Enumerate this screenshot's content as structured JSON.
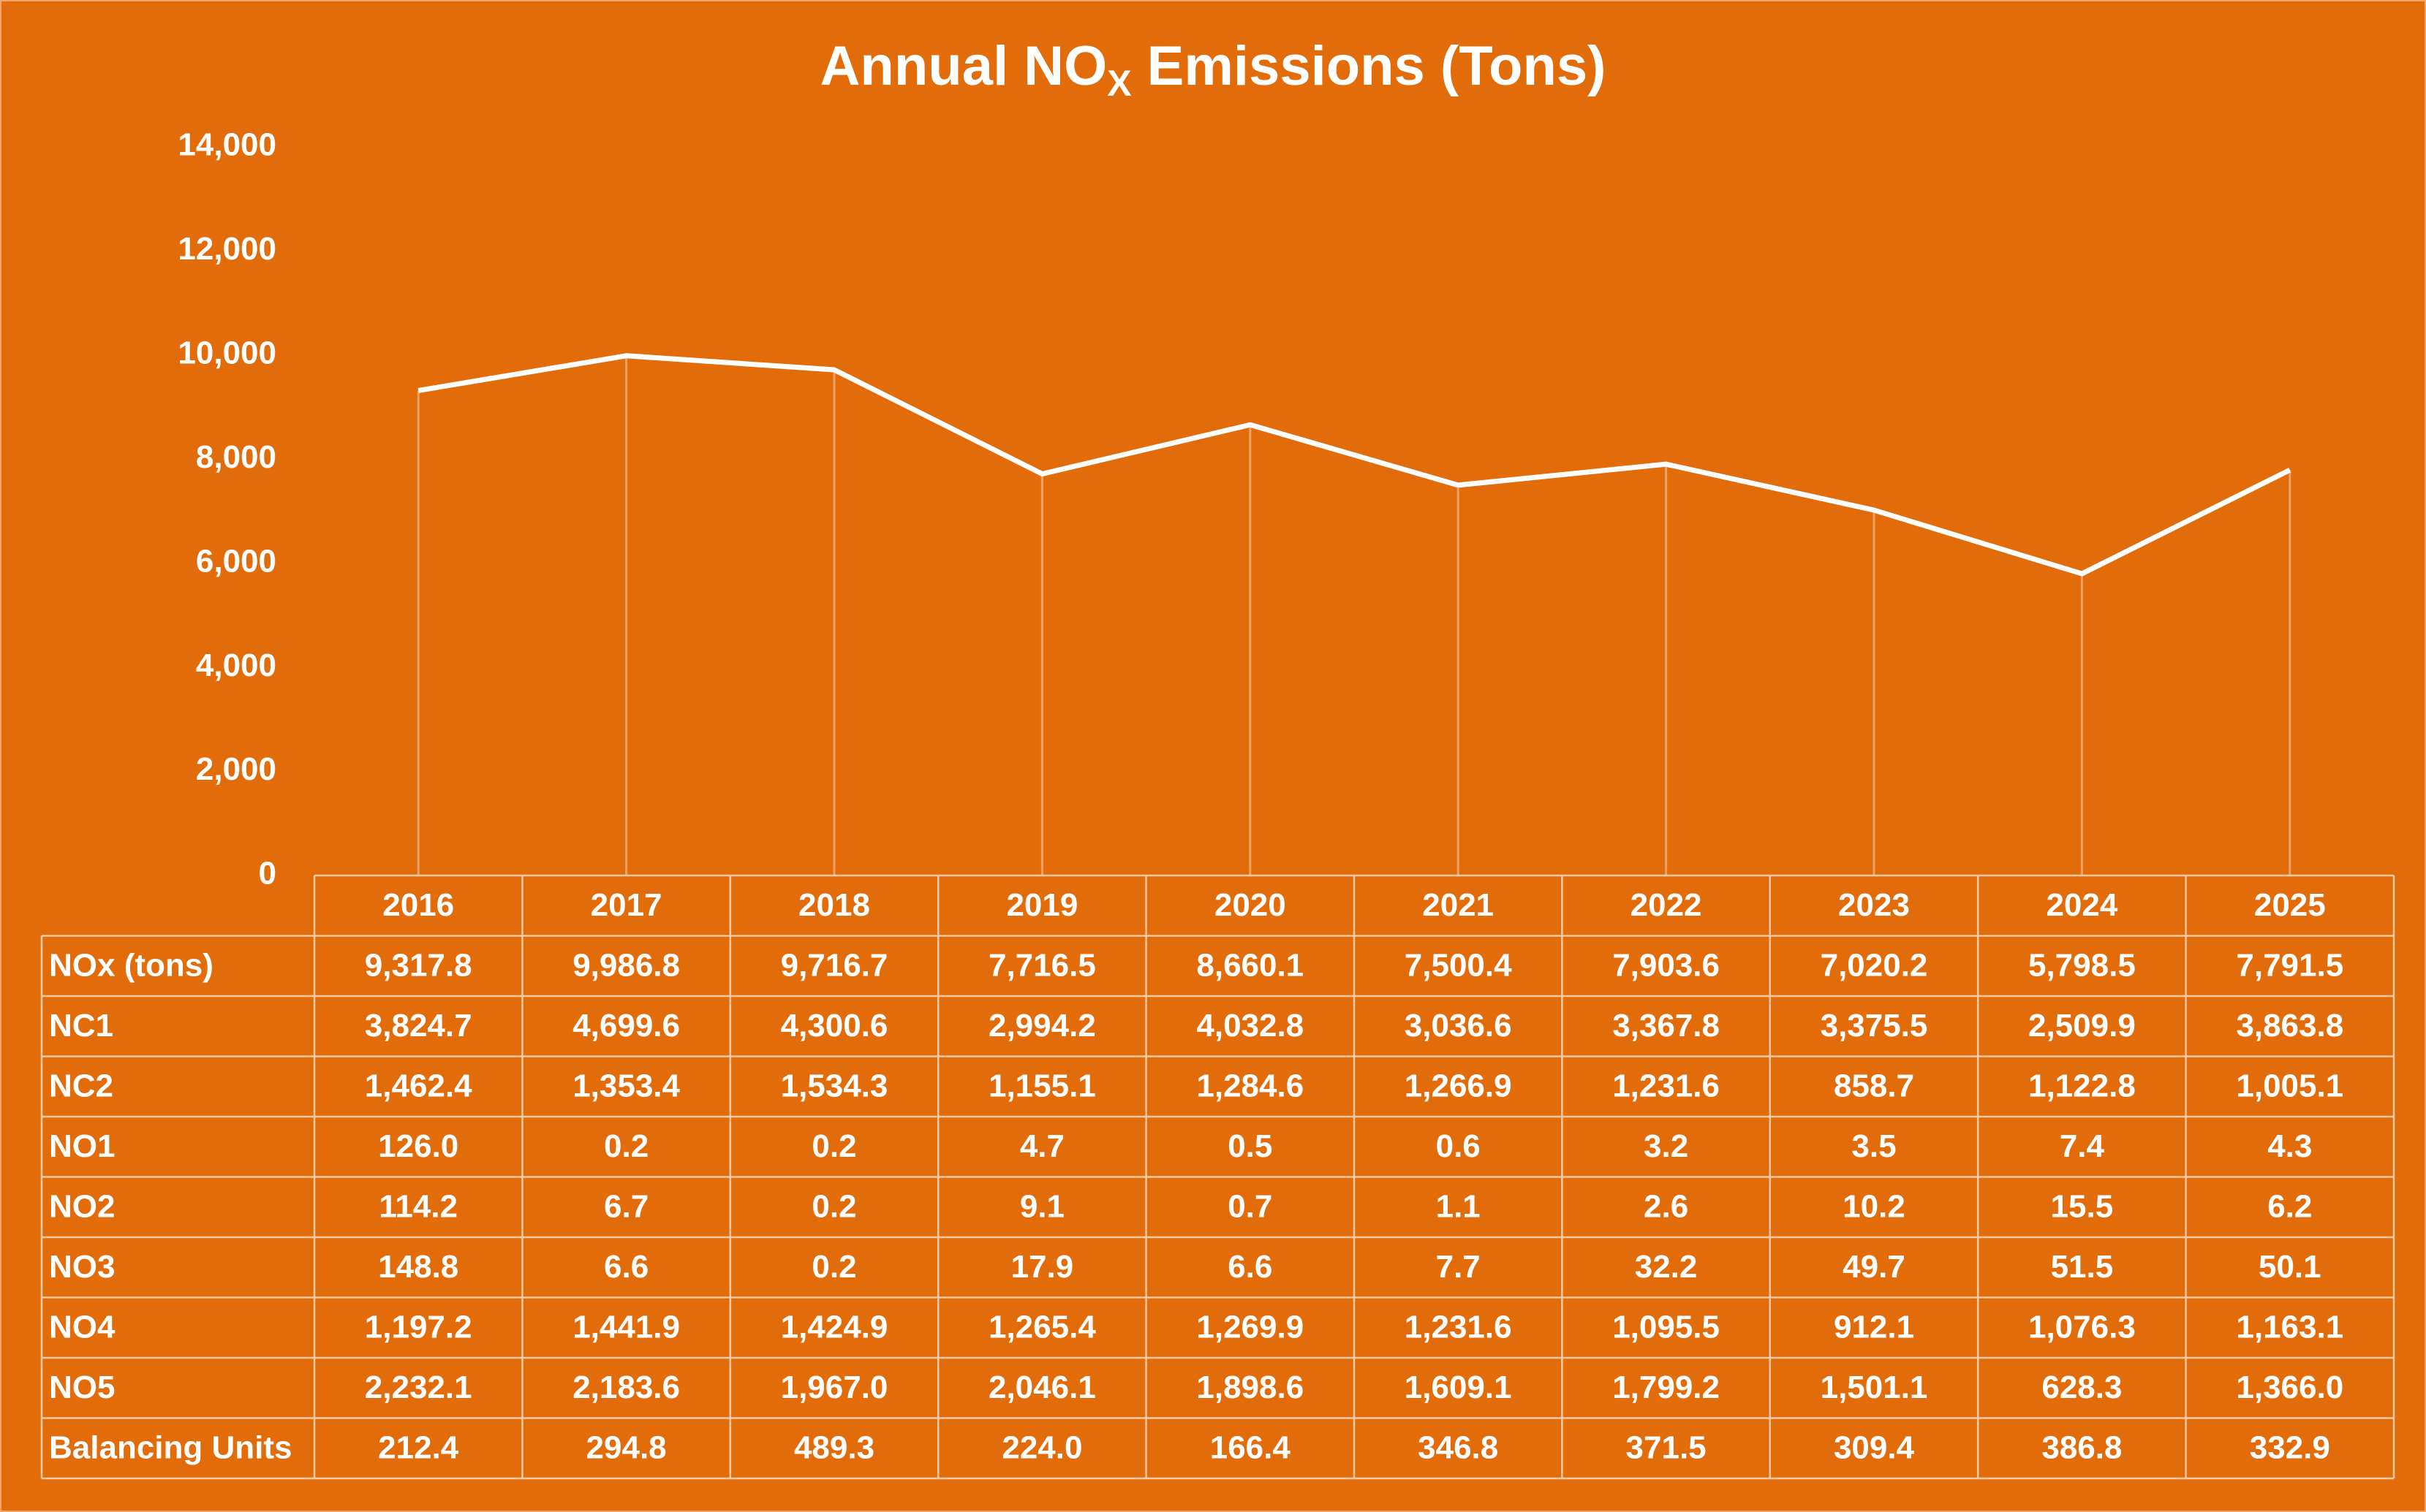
{
  "chart_data": {
    "type": "line",
    "title": [
      "Annual NO",
      "X",
      " Emissions (Tons)"
    ],
    "categories": [
      "2016",
      "2017",
      "2018",
      "2019",
      "2020",
      "2021",
      "2022",
      "2023",
      "2024",
      "2025"
    ],
    "series": [
      {
        "name": "NOx (tons)",
        "color": "#ffffff",
        "values": [
          9317.8,
          9986.8,
          9716.7,
          7716.5,
          8660.1,
          7500.4,
          7903.6,
          7020.2,
          5798.5,
          7791.5
        ],
        "value_labels": [
          "9,317.8",
          "9,986.8",
          "9,716.7",
          "7,716.5",
          "8,660.1",
          "7,500.4",
          "7,903.6",
          "7,020.2",
          "5,798.5",
          "7,791.5"
        ]
      }
    ],
    "ylim": [
      0,
      14000
    ],
    "yticks": [
      0,
      {
        "value": 2000,
        "label": "2,000"
      },
      {
        "value": 4000,
        "label": "4,000"
      },
      {
        "value": 6000,
        "label": "6,000"
      },
      {
        "value": 8000,
        "label": "8,000"
      },
      {
        "value": 10000,
        "label": "10,000"
      },
      {
        "value": 12000,
        "label": "12,000"
      },
      {
        "value": 14000,
        "label": "14,000"
      }
    ],
    "drop_lines": true,
    "table_rows": [
      {
        "name": "NC1",
        "values": [
          3824.7,
          4699.6,
          4300.6,
          2994.2,
          4032.8,
          3036.6,
          3367.8,
          3375.5,
          2509.9,
          3863.8
        ],
        "value_labels": [
          "3,824.7",
          "4,699.6",
          "4,300.6",
          "2,994.2",
          "4,032.8",
          "3,036.6",
          "3,367.8",
          "3,375.5",
          "2,509.9",
          "3,863.8"
        ]
      },
      {
        "name": "NC2",
        "values": [
          1462.4,
          1353.4,
          1534.3,
          1155.1,
          1284.6,
          1266.9,
          1231.6,
          858.7,
          1122.8,
          1005.1
        ],
        "value_labels": [
          "1,462.4",
          "1,353.4",
          "1,534.3",
          "1,155.1",
          "1,284.6",
          "1,266.9",
          "1,231.6",
          "858.7",
          "1,122.8",
          "1,005.1"
        ]
      },
      {
        "name": "NO1",
        "values": [
          126.0,
          0.2,
          0.2,
          4.7,
          0.5,
          0.6,
          3.2,
          3.5,
          7.4,
          4.3
        ],
        "value_labels": [
          "126.0",
          "0.2",
          "0.2",
          "4.7",
          "0.5",
          "0.6",
          "3.2",
          "3.5",
          "7.4",
          "4.3"
        ]
      },
      {
        "name": "NO2",
        "values": [
          114.2,
          6.7,
          0.2,
          9.1,
          0.7,
          1.1,
          2.6,
          10.2,
          15.5,
          6.2
        ],
        "value_labels": [
          "114.2",
          "6.7",
          "0.2",
          "9.1",
          "0.7",
          "1.1",
          "2.6",
          "10.2",
          "15.5",
          "6.2"
        ]
      },
      {
        "name": "NO3",
        "values": [
          148.8,
          6.6,
          0.2,
          17.9,
          6.6,
          7.7,
          32.2,
          49.7,
          51.5,
          50.1
        ],
        "value_labels": [
          "148.8",
          "6.6",
          "0.2",
          "17.9",
          "6.6",
          "7.7",
          "32.2",
          "49.7",
          "51.5",
          "50.1"
        ]
      },
      {
        "name": "NO4",
        "values": [
          1197.2,
          1441.9,
          1424.9,
          1265.4,
          1269.9,
          1231.6,
          1095.5,
          912.1,
          1076.3,
          1163.1
        ],
        "value_labels": [
          "1,197.2",
          "1,441.9",
          "1,424.9",
          "1,265.4",
          "1,269.9",
          "1,231.6",
          "1,095.5",
          "912.1",
          "1,076.3",
          "1,163.1"
        ]
      },
      {
        "name": "NO5",
        "values": [
          2232.1,
          2183.6,
          1967.0,
          2046.1,
          1898.6,
          1609.1,
          1799.2,
          1501.1,
          628.3,
          1366.0
        ],
        "value_labels": [
          "2,232.1",
          "2,183.6",
          "1,967.0",
          "2,046.1",
          "1,898.6",
          "1,609.1",
          "1,799.2",
          "1,501.1",
          "628.3",
          "1,366.0"
        ]
      },
      {
        "name": "Balancing Units",
        "values": [
          212.4,
          294.8,
          489.3,
          224.0,
          166.4,
          346.8,
          371.5,
          309.4,
          386.8,
          332.9
        ],
        "value_labels": [
          "212.4",
          "294.8",
          "489.3",
          "224.0",
          "166.4",
          "346.8",
          "371.5",
          "309.4",
          "386.8",
          "332.9"
        ]
      }
    ]
  }
}
